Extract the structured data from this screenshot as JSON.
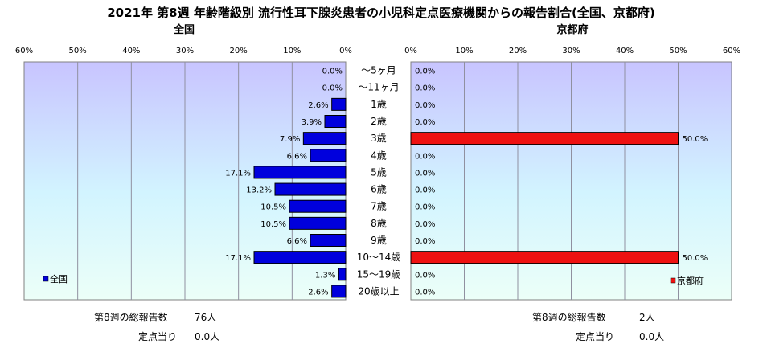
{
  "chart_data": {
    "type": "bar",
    "title": "2021年 第8週 年齢階級別 流行性耳下腺炎患者の小児科定点医療機関からの報告割合(全国、京都府)",
    "categories": [
      "～5ヶ月",
      "～11ヶ月",
      "1歳",
      "2歳",
      "3歳",
      "4歳",
      "5歳",
      "6歳",
      "7歳",
      "8歳",
      "9歳",
      "10～14歳",
      "15～19歳",
      "20歳以上"
    ],
    "axis_ticks": [
      "60%",
      "50%",
      "40%",
      "30%",
      "20%",
      "10%",
      "0%"
    ],
    "axis_range": [
      0,
      60
    ],
    "value_unit": "%",
    "grid": true,
    "panels": [
      {
        "subtitle": "全国",
        "legend_label": "全国",
        "legend_position": "bottom-left",
        "color": "#0000dd",
        "direction": "left",
        "values": [
          0.0,
          0.0,
          2.6,
          3.9,
          7.9,
          6.6,
          17.1,
          13.2,
          10.5,
          10.5,
          6.6,
          17.1,
          1.3,
          2.6
        ],
        "value_labels": [
          "0.0%",
          "0.0%",
          "2.6%",
          "3.9%",
          "7.9%",
          "6.6%",
          "17.1%",
          "13.2%",
          "10.5%",
          "10.5%",
          "6.6%",
          "17.1%",
          "1.3%",
          "2.6%"
        ]
      },
      {
        "subtitle": "京都府",
        "legend_label": "京都府",
        "legend_position": "bottom-right",
        "color": "#ee1111",
        "direction": "right",
        "values": [
          0.0,
          0.0,
          0.0,
          0.0,
          50.0,
          0.0,
          0.0,
          0.0,
          0.0,
          0.0,
          0.0,
          50.0,
          0.0,
          0.0
        ],
        "value_labels": [
          "0.0%",
          "0.0%",
          "0.0%",
          "0.0%",
          "50.0%",
          "0.0%",
          "0.0%",
          "0.0%",
          "0.0%",
          "0.0%",
          "0.0%",
          "50.0%",
          "0.0%",
          "0.0%"
        ]
      }
    ]
  },
  "stats": {
    "national": {
      "total_label": "第8週の総報告数",
      "total_value": "76人",
      "per_site_label": "定点当り",
      "per_site_value": "0.0人"
    },
    "kyoto": {
      "total_label": "第8週の総報告数",
      "total_value": "2人",
      "per_site_label": "定点当り",
      "per_site_value": "0.0人"
    }
  }
}
